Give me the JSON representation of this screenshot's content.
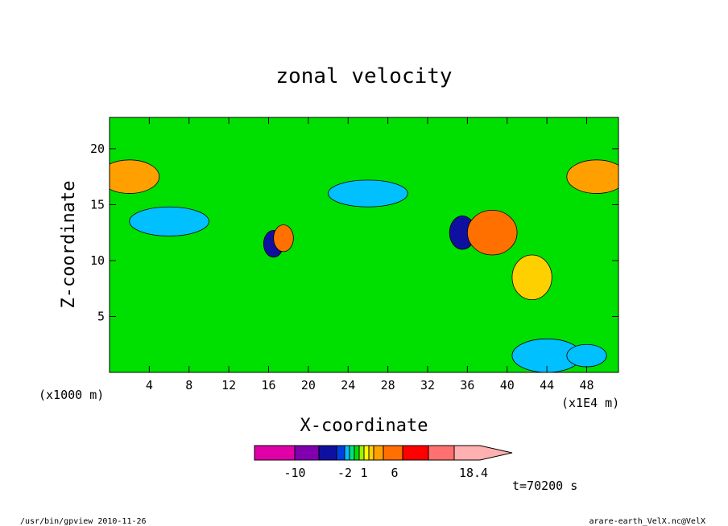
{
  "chart_data": {
    "type": "heatmap",
    "title": "zonal velocity",
    "xlabel": "X-coordinate",
    "ylabel": "Z-coordinate",
    "x_unit_left": "(x1000 m)",
    "x_unit_right": "(x1E4 m)",
    "x_ticks": [
      "4",
      "8",
      "12",
      "16",
      "20",
      "24",
      "28",
      "32",
      "36",
      "40",
      "44",
      "48"
    ],
    "y_ticks": [
      "5",
      "10",
      "15",
      "20"
    ],
    "xlim": [
      0,
      51.2
    ],
    "ylim": [
      0,
      22.8
    ],
    "time_label": "t=70200 s",
    "colorbar": {
      "tick_labels": [
        "-10",
        "-2",
        "1",
        "6",
        "18.4"
      ],
      "colors": [
        "#e000a8",
        "#8000b0",
        "#1010a0",
        "#0040e0",
        "#00c0ff",
        "#00e080",
        "#00e000",
        "#a0f000",
        "#ffff00",
        "#ffd000",
        "#ffa000",
        "#ff7000",
        "#ff0000",
        "#ff7070",
        "#ffb0b0"
      ]
    },
    "background_value_color": "#00e000",
    "features": [
      {
        "kind": "blob",
        "x": 2,
        "z": 17.5,
        "rx": 3,
        "rz": 1.5,
        "level": 10
      },
      {
        "kind": "blob",
        "x": 49,
        "z": 17.5,
        "rx": 3,
        "rz": 1.5,
        "level": 10
      },
      {
        "kind": "blob",
        "x": 6,
        "z": 13.5,
        "rx": 4,
        "rz": 1.3,
        "level": 4
      },
      {
        "kind": "blob",
        "x": 16.5,
        "z": 11.5,
        "rx": 1,
        "rz": 1.2,
        "level": 2
      },
      {
        "kind": "blob",
        "x": 17.5,
        "z": 12,
        "rx": 1,
        "rz": 1.2,
        "level": 11
      },
      {
        "kind": "blob",
        "x": 26,
        "z": 16,
        "rx": 4,
        "rz": 1.2,
        "level": 4
      },
      {
        "kind": "blob",
        "x": 35.5,
        "z": 12.5,
        "rx": 1.3,
        "rz": 1.5,
        "level": 2
      },
      {
        "kind": "blob",
        "x": 38.5,
        "z": 12.5,
        "rx": 2.5,
        "rz": 2,
        "level": 11
      },
      {
        "kind": "blob",
        "x": 42.5,
        "z": 8.5,
        "rx": 2,
        "rz": 2,
        "level": 9
      },
      {
        "kind": "blob",
        "x": 44,
        "z": 1.5,
        "rx": 3.5,
        "rz": 1.5,
        "level": 4
      },
      {
        "kind": "blob",
        "x": 48,
        "z": 1.5,
        "rx": 2,
        "rz": 1,
        "level": 4
      }
    ]
  },
  "footer": {
    "left": "/usr/bin/gpview  2010-11-26",
    "right": "arare-earth_VelX.nc@VelX"
  }
}
